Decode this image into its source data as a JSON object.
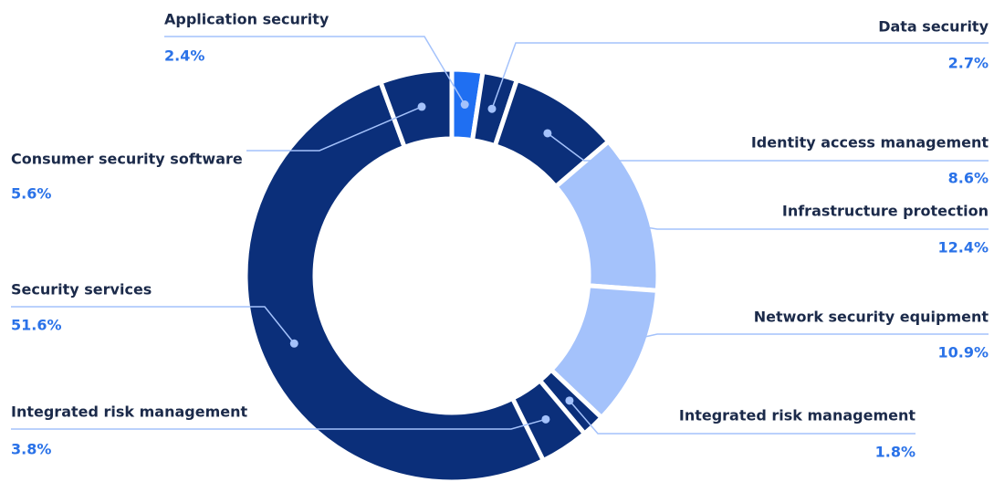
{
  "chart_data": {
    "type": "pie",
    "donut": true,
    "categories": [
      "Application security",
      "Data security",
      "Identity access management",
      "Infrastructure protection",
      "Network security equipment",
      "Integrated risk management",
      "Integrated risk management",
      "Security services",
      "Consumer security software"
    ],
    "values": [
      2.4,
      2.7,
      8.6,
      12.4,
      10.9,
      1.8,
      3.8,
      51.6,
      5.6
    ],
    "value_labels": [
      "2.4%",
      "2.7%",
      "8.6%",
      "12.4%",
      "10.9%",
      "1.8%",
      "3.8%",
      "51.6%",
      "5.6%"
    ],
    "colors": [
      "#1f6ff2",
      "#0b2f7a",
      "#0b2f7a",
      "#a4c2fb",
      "#a4c2fb",
      "#0b2f7a",
      "#0b2f7a",
      "#0b2f7a",
      "#0b2f7a"
    ]
  }
}
